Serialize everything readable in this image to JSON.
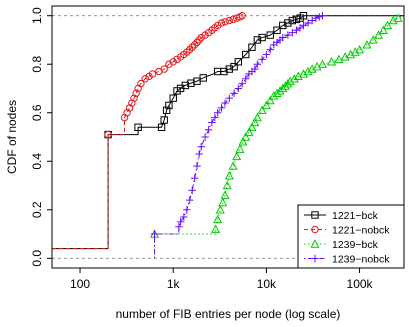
{
  "chart_data": {
    "type": "line",
    "xlabel": "number of FIB entries per node (log scale)",
    "ylabel": "CDF of nodes",
    "x_scale": "log",
    "xlim": [
      50,
      300000
    ],
    "ylim": [
      -0.04,
      1.04
    ],
    "x_ticks": [
      {
        "value": 100,
        "label": "100"
      },
      {
        "value": 1000,
        "label": "1k"
      },
      {
        "value": 10000,
        "label": "10k"
      },
      {
        "value": 100000,
        "label": "100k"
      }
    ],
    "y_ticks": [
      {
        "value": 0.0,
        "label": "0.0"
      },
      {
        "value": 0.2,
        "label": "0.2"
      },
      {
        "value": 0.4,
        "label": "0.4"
      },
      {
        "value": 0.6,
        "label": "0.6"
      },
      {
        "value": 0.8,
        "label": "0.8"
      },
      {
        "value": 1.0,
        "label": "1.0"
      }
    ],
    "reference_lines": [
      0,
      1
    ],
    "legend_position": "bottom-right",
    "series": [
      {
        "name": "1221−bck",
        "color": "#000000",
        "marker": "square",
        "line": "solid",
        "x": [
          50,
          200,
          200,
          420,
          420,
          750,
          800,
          850,
          900,
          1000,
          1100,
          1300,
          1500,
          1800,
          2000,
          2300,
          2700,
          3000,
          3500,
          4000,
          4500,
          5000,
          6000,
          7000,
          8000,
          9000,
          11000,
          13000,
          15000,
          17000,
          19000,
          21000,
          23000,
          24000,
          25000,
          300000
        ],
        "y": [
          0.04,
          0.04,
          0.51,
          0.51,
          0.54,
          0.54,
          0.57,
          0.61,
          0.63,
          0.66,
          0.69,
          0.71,
          0.72,
          0.73,
          0.74,
          0.75,
          0.76,
          0.77,
          0.77,
          0.78,
          0.79,
          0.81,
          0.84,
          0.87,
          0.9,
          0.91,
          0.92,
          0.94,
          0.96,
          0.97,
          0.98,
          0.985,
          0.99,
          0.995,
          1.0,
          1.0
        ],
        "markers_x": [
          200,
          420,
          750,
          800,
          850,
          900,
          1000,
          1100,
          1200,
          1350,
          1550,
          1800,
          2100,
          3000,
          3500,
          4000,
          4500,
          5000,
          6000,
          7000,
          8000,
          9000,
          11000,
          13000,
          15000,
          17000,
          19000,
          21000,
          23000,
          25000
        ]
      },
      {
        "name": "1221−nobck",
        "color": "#e31a1c",
        "marker": "circle",
        "line": "dashed",
        "x": [
          50,
          200,
          200,
          300,
          300,
          320,
          340,
          360,
          380,
          400,
          420,
          450,
          500,
          550,
          600,
          700,
          800,
          900,
          1000,
          1100,
          1200,
          1300,
          1400,
          1500,
          1600,
          1700,
          1800,
          1900,
          2000,
          2200,
          2400,
          2600,
          2800,
          3000,
          3300,
          3600,
          4000,
          4400,
          4800,
          5200,
          5500
        ],
        "y": [
          0.04,
          0.04,
          0.51,
          0.51,
          0.58,
          0.6,
          0.62,
          0.64,
          0.66,
          0.68,
          0.7,
          0.72,
          0.74,
          0.75,
          0.76,
          0.77,
          0.78,
          0.8,
          0.81,
          0.82,
          0.83,
          0.84,
          0.85,
          0.86,
          0.87,
          0.88,
          0.89,
          0.9,
          0.91,
          0.92,
          0.93,
          0.94,
          0.95,
          0.96,
          0.97,
          0.975,
          0.98,
          0.985,
          0.99,
          0.995,
          1.0
        ],
        "markers_x": [
          200,
          300,
          320,
          340,
          360,
          380,
          400,
          420,
          450,
          500,
          550,
          600,
          700,
          800,
          900,
          1000,
          1100,
          1200,
          1300,
          1400,
          1500,
          1600,
          1700,
          1800,
          1900,
          2000,
          2200,
          2400,
          2600,
          2800,
          3000,
          3300,
          3600,
          4000,
          4400,
          4800,
          5200,
          5500
        ]
      },
      {
        "name": "1239−bck",
        "color": "#00cc00",
        "marker": "triangle",
        "line": "dotted",
        "x": [
          630,
          630,
          2850,
          2850,
          3000,
          3200,
          3400,
          3600,
          3800,
          4000,
          4400,
          4800,
          5200,
          5600,
          6000,
          6500,
          7000,
          7500,
          8000,
          9000,
          10000,
          11000,
          12000,
          13000,
          14000,
          15000,
          16000,
          17000,
          18000,
          20000,
          22000,
          25000,
          28000,
          31000,
          35000,
          40000,
          50000,
          60000,
          70000,
          80000,
          90000,
          100000,
          120000,
          140000,
          160000,
          180000,
          200000,
          230000,
          260000,
          300000
        ],
        "y": [
          0.0,
          0.1,
          0.1,
          0.12,
          0.16,
          0.2,
          0.23,
          0.26,
          0.3,
          0.34,
          0.38,
          0.42,
          0.45,
          0.48,
          0.5,
          0.52,
          0.54,
          0.56,
          0.58,
          0.61,
          0.63,
          0.65,
          0.67,
          0.68,
          0.69,
          0.7,
          0.71,
          0.72,
          0.73,
          0.74,
          0.75,
          0.76,
          0.77,
          0.78,
          0.79,
          0.8,
          0.81,
          0.82,
          0.83,
          0.84,
          0.85,
          0.86,
          0.88,
          0.9,
          0.92,
          0.94,
          0.96,
          0.98,
          0.99,
          1.0
        ],
        "markers_x": [
          630,
          2850,
          3000,
          3200,
          3400,
          3600,
          3800,
          4000,
          4400,
          4800,
          5200,
          5600,
          6000,
          6500,
          7000,
          7500,
          8000,
          9000,
          10000,
          11000,
          12000,
          13000,
          14000,
          15000,
          16000,
          17000,
          18000,
          20000,
          22000,
          25000,
          28000,
          31000,
          35000,
          40000,
          50000,
          60000,
          70000,
          80000,
          90000,
          100000,
          120000,
          140000,
          160000,
          180000,
          200000,
          230000,
          260000
        ]
      },
      {
        "name": "1239−nobck",
        "color": "#6a0dff",
        "marker": "plus",
        "line": "dotdash",
        "x": [
          630,
          630,
          1150,
          1150,
          1200,
          1300,
          1400,
          1500,
          1600,
          1700,
          1800,
          1900,
          2000,
          2200,
          2400,
          2600,
          2800,
          3000,
          3300,
          3600,
          4000,
          4500,
          5000,
          5500,
          6000,
          6500,
          7000,
          7500,
          8000,
          9000,
          10000,
          11000,
          12000,
          13000,
          14000,
          15000,
          17000,
          19000,
          21000,
          23000,
          25000,
          28000,
          31000,
          34000,
          37000,
          40000
        ],
        "y": [
          0.0,
          0.1,
          0.1,
          0.13,
          0.15,
          0.17,
          0.2,
          0.24,
          0.28,
          0.33,
          0.38,
          0.43,
          0.46,
          0.5,
          0.53,
          0.56,
          0.58,
          0.6,
          0.62,
          0.64,
          0.66,
          0.68,
          0.7,
          0.72,
          0.74,
          0.76,
          0.77,
          0.78,
          0.8,
          0.82,
          0.84,
          0.86,
          0.88,
          0.89,
          0.9,
          0.91,
          0.92,
          0.93,
          0.94,
          0.95,
          0.96,
          0.97,
          0.98,
          0.99,
          0.995,
          1.0
        ],
        "markers_x": [
          630,
          1150,
          1200,
          1300,
          1400,
          1500,
          1600,
          1700,
          1800,
          1900,
          2000,
          2200,
          2400,
          2600,
          2800,
          3000,
          3300,
          3600,
          4000,
          4500,
          5000,
          5500,
          6000,
          6500,
          7000,
          7500,
          8000,
          9000,
          10000,
          11000,
          12000,
          13000,
          14000,
          15000,
          17000,
          19000,
          21000,
          23000,
          25000,
          28000,
          31000,
          34000,
          37000,
          40000
        ]
      }
    ]
  }
}
